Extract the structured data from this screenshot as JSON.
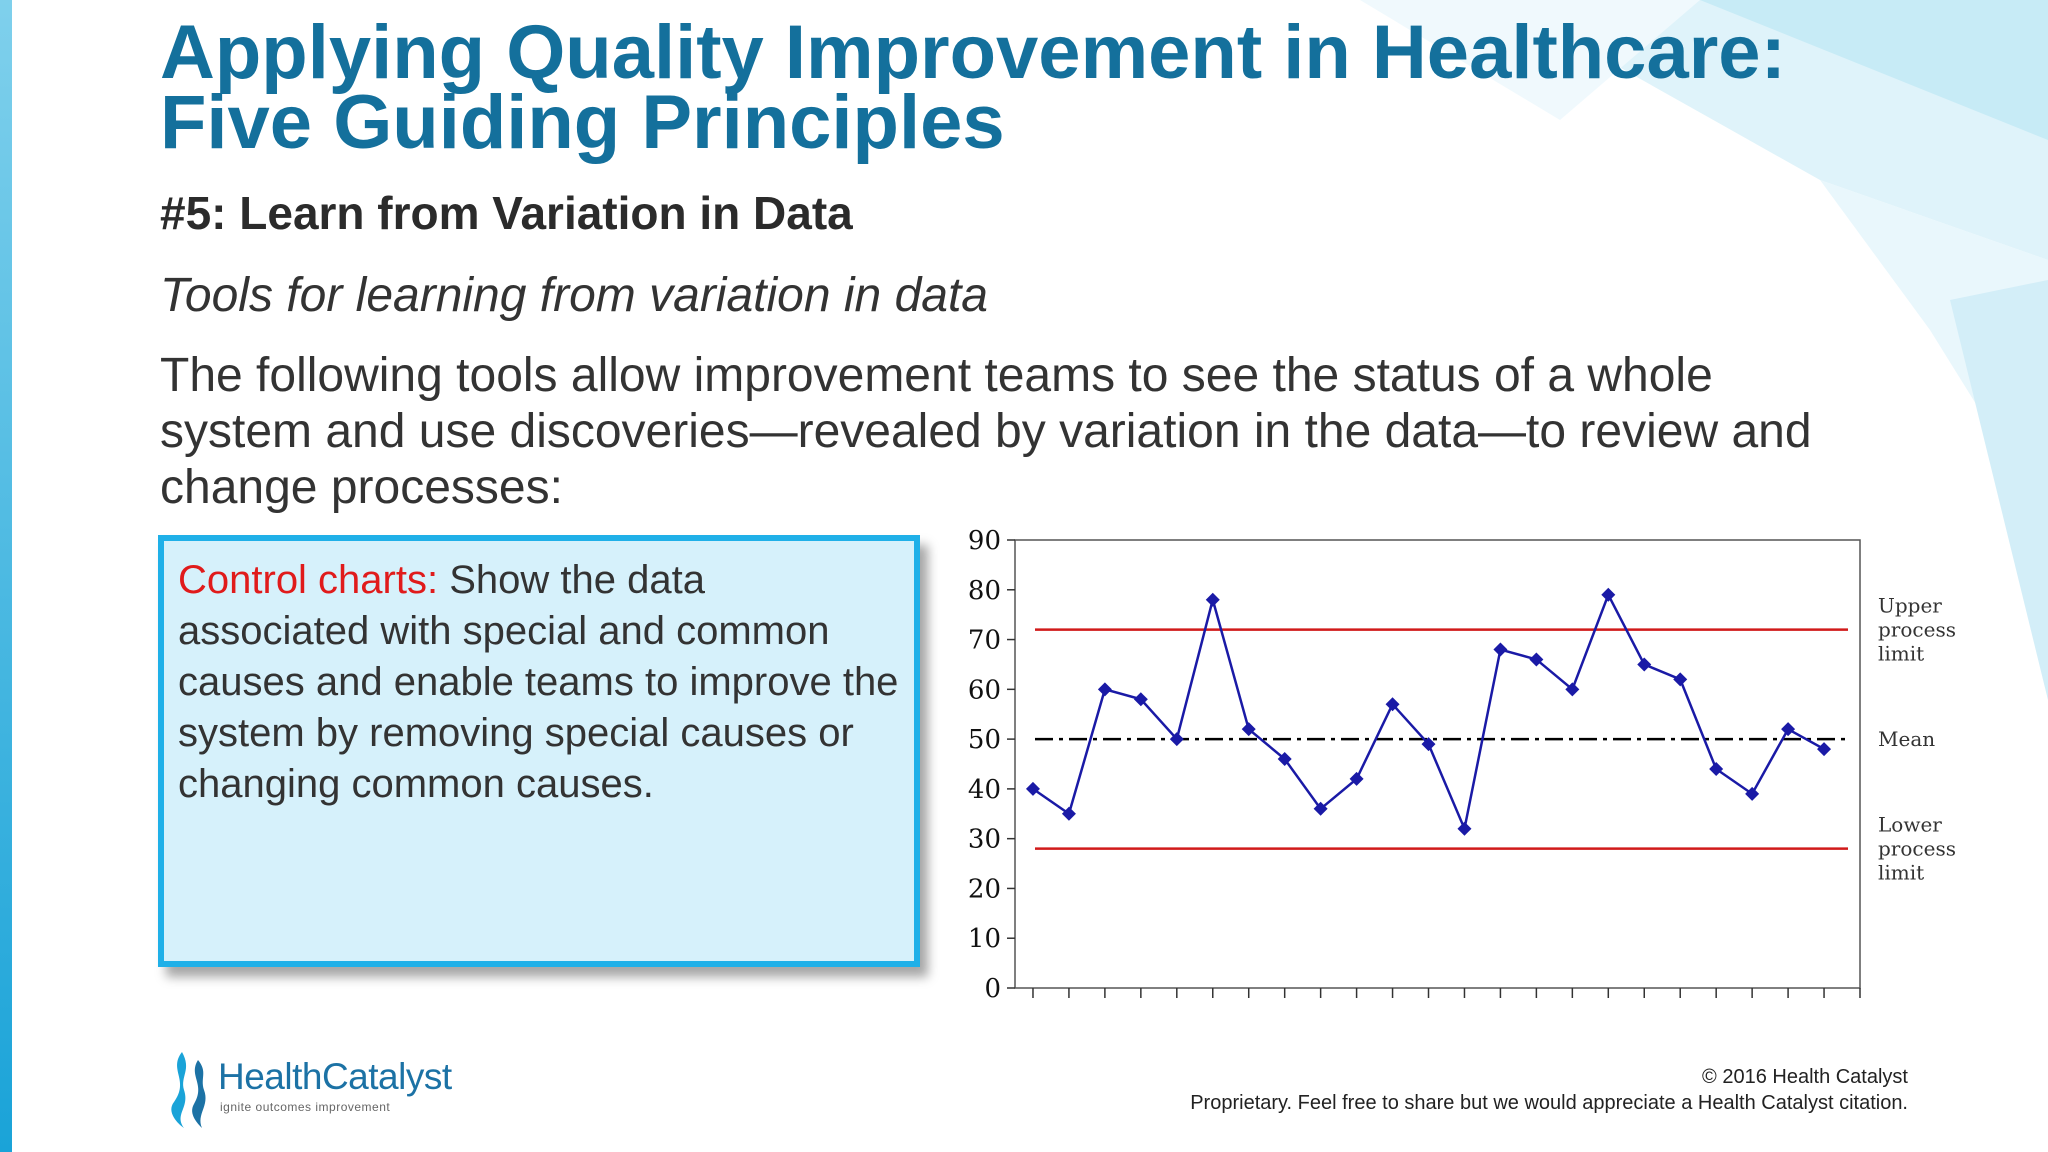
{
  "slide": {
    "title_line1": "Applying Quality Improvement in Healthcare:",
    "title_line2": "Five Guiding Principles",
    "subheading": "#5: Learn from Variation in Data",
    "italic_subheading": "Tools for learning from variation in data",
    "body": "The following tools allow improvement teams to see the status of a whole system and use discoveries—revealed by variation in the data—to review and change processes:"
  },
  "callout": {
    "term": "Control charts:",
    "text": " Show the data associated with special and common causes and enable teams to improve the system by removing special causes or changing common causes."
  },
  "chart_data": {
    "type": "line",
    "title": "",
    "xlabel": "",
    "ylabel": "",
    "ylim": [
      0,
      90
    ],
    "yticks": [
      0,
      10,
      20,
      30,
      40,
      50,
      60,
      70,
      80,
      90
    ],
    "x_tick_count": 23,
    "series": [
      {
        "values": [
          40,
          35,
          60,
          58,
          50,
          78,
          52,
          46,
          36,
          42,
          57,
          49,
          32,
          68,
          66,
          60,
          79,
          65,
          62,
          44,
          39,
          52,
          48
        ],
        "color": "#1a1aa6",
        "marker": "diamond"
      }
    ],
    "reference_lines": [
      {
        "label": "Upper process limit",
        "label_lines": [
          "Upper",
          "process",
          "limit"
        ],
        "value": 72,
        "color": "#d11a1a",
        "style": "solid"
      },
      {
        "label": "Mean",
        "label_lines": [
          "Mean"
        ],
        "value": 50,
        "color": "#000000",
        "style": "dash-dot"
      },
      {
        "label": "Lower process limit",
        "label_lines": [
          "Lower",
          "process",
          "limit"
        ],
        "value": 28,
        "color": "#d11a1a",
        "style": "solid"
      }
    ],
    "grid": false
  },
  "logo": {
    "name": "HealthCatalyst",
    "tagline": "ignite outcomes improvement",
    "colors": {
      "primary": "#1c72a5",
      "flame": "#1aa3d8"
    }
  },
  "footer": {
    "copyright": "© 2016 Health Catalyst",
    "note": "Proprietary. Feel free to share but we would appreciate a Health Catalyst citation."
  },
  "colors": {
    "title": "#14709c",
    "accent": "#1fb0e8",
    "callout_bg": "#d6f1fb",
    "callout_term": "#e01b1b"
  }
}
